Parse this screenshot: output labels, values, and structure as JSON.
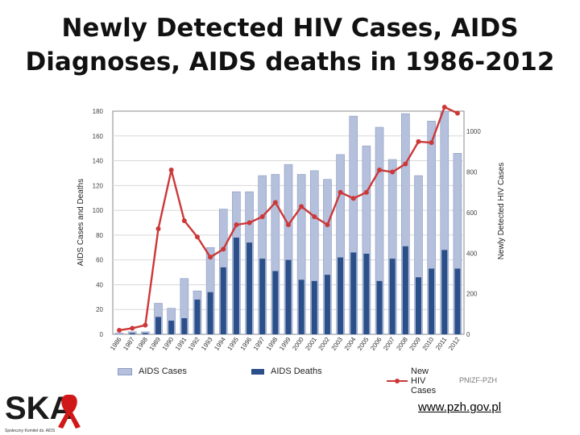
{
  "slide": {
    "title_line1": "Newly Detected HIV Cases, AIDS",
    "title_line2": "Diagnoses, AIDS deaths in 1986-2012",
    "credit": "PNIZF-PZH",
    "url": "www.pzh.gov.pl",
    "logo_text": "SKA",
    "logo_subtext": "Społeczny Komitet ds. AIDS"
  },
  "chart_data": {
    "type": "bar",
    "title": "",
    "ylabel": "AIDS Cases and Deaths",
    "y2label": "Newly Detected HIV Cases",
    "ylim": [
      0,
      180
    ],
    "y2lim": [
      0,
      1100
    ],
    "yticks": [
      0,
      20,
      40,
      60,
      80,
      100,
      120,
      140,
      160,
      180
    ],
    "y2ticks": [
      0,
      200,
      400,
      600,
      800,
      1000
    ],
    "grid": true,
    "legend_position": "bottom",
    "categories": [
      "1986",
      "1987",
      "1988",
      "1989",
      "1990",
      "1991",
      "1992",
      "1993",
      "1994",
      "1995",
      "1996",
      "1997",
      "1998",
      "1999",
      "2000",
      "2001",
      "2002",
      "2003",
      "2004",
      "2005",
      "2006",
      "2007",
      "2008",
      "2009",
      "2010",
      "2011",
      "2012"
    ],
    "series": [
      {
        "name": "AIDS Cases",
        "kind": "bar",
        "axis": "left",
        "color": "#b4c0dc",
        "values": [
          1,
          2,
          2,
          25,
          21,
          45,
          35,
          70,
          101,
          115,
          115,
          128,
          129,
          137,
          129,
          132,
          125,
          145,
          176,
          152,
          167,
          141,
          178,
          128,
          172,
          180,
          146
        ]
      },
      {
        "name": "AIDS Deaths",
        "kind": "bar",
        "axis": "left",
        "color": "#2b4f88",
        "values": [
          0,
          1,
          1,
          14,
          11,
          13,
          28,
          34,
          54,
          78,
          74,
          61,
          51,
          60,
          44,
          43,
          48,
          62,
          66,
          65,
          43,
          61,
          71,
          46,
          53,
          68,
          53
        ]
      },
      {
        "name": "New HIV Cases",
        "kind": "line",
        "axis": "right",
        "color": "#cc3838",
        "values": [
          20,
          30,
          45,
          520,
          810,
          560,
          480,
          380,
          420,
          540,
          550,
          580,
          650,
          540,
          630,
          580,
          540,
          700,
          670,
          700,
          810,
          800,
          840,
          950,
          945,
          1120,
          1090
        ]
      }
    ]
  }
}
